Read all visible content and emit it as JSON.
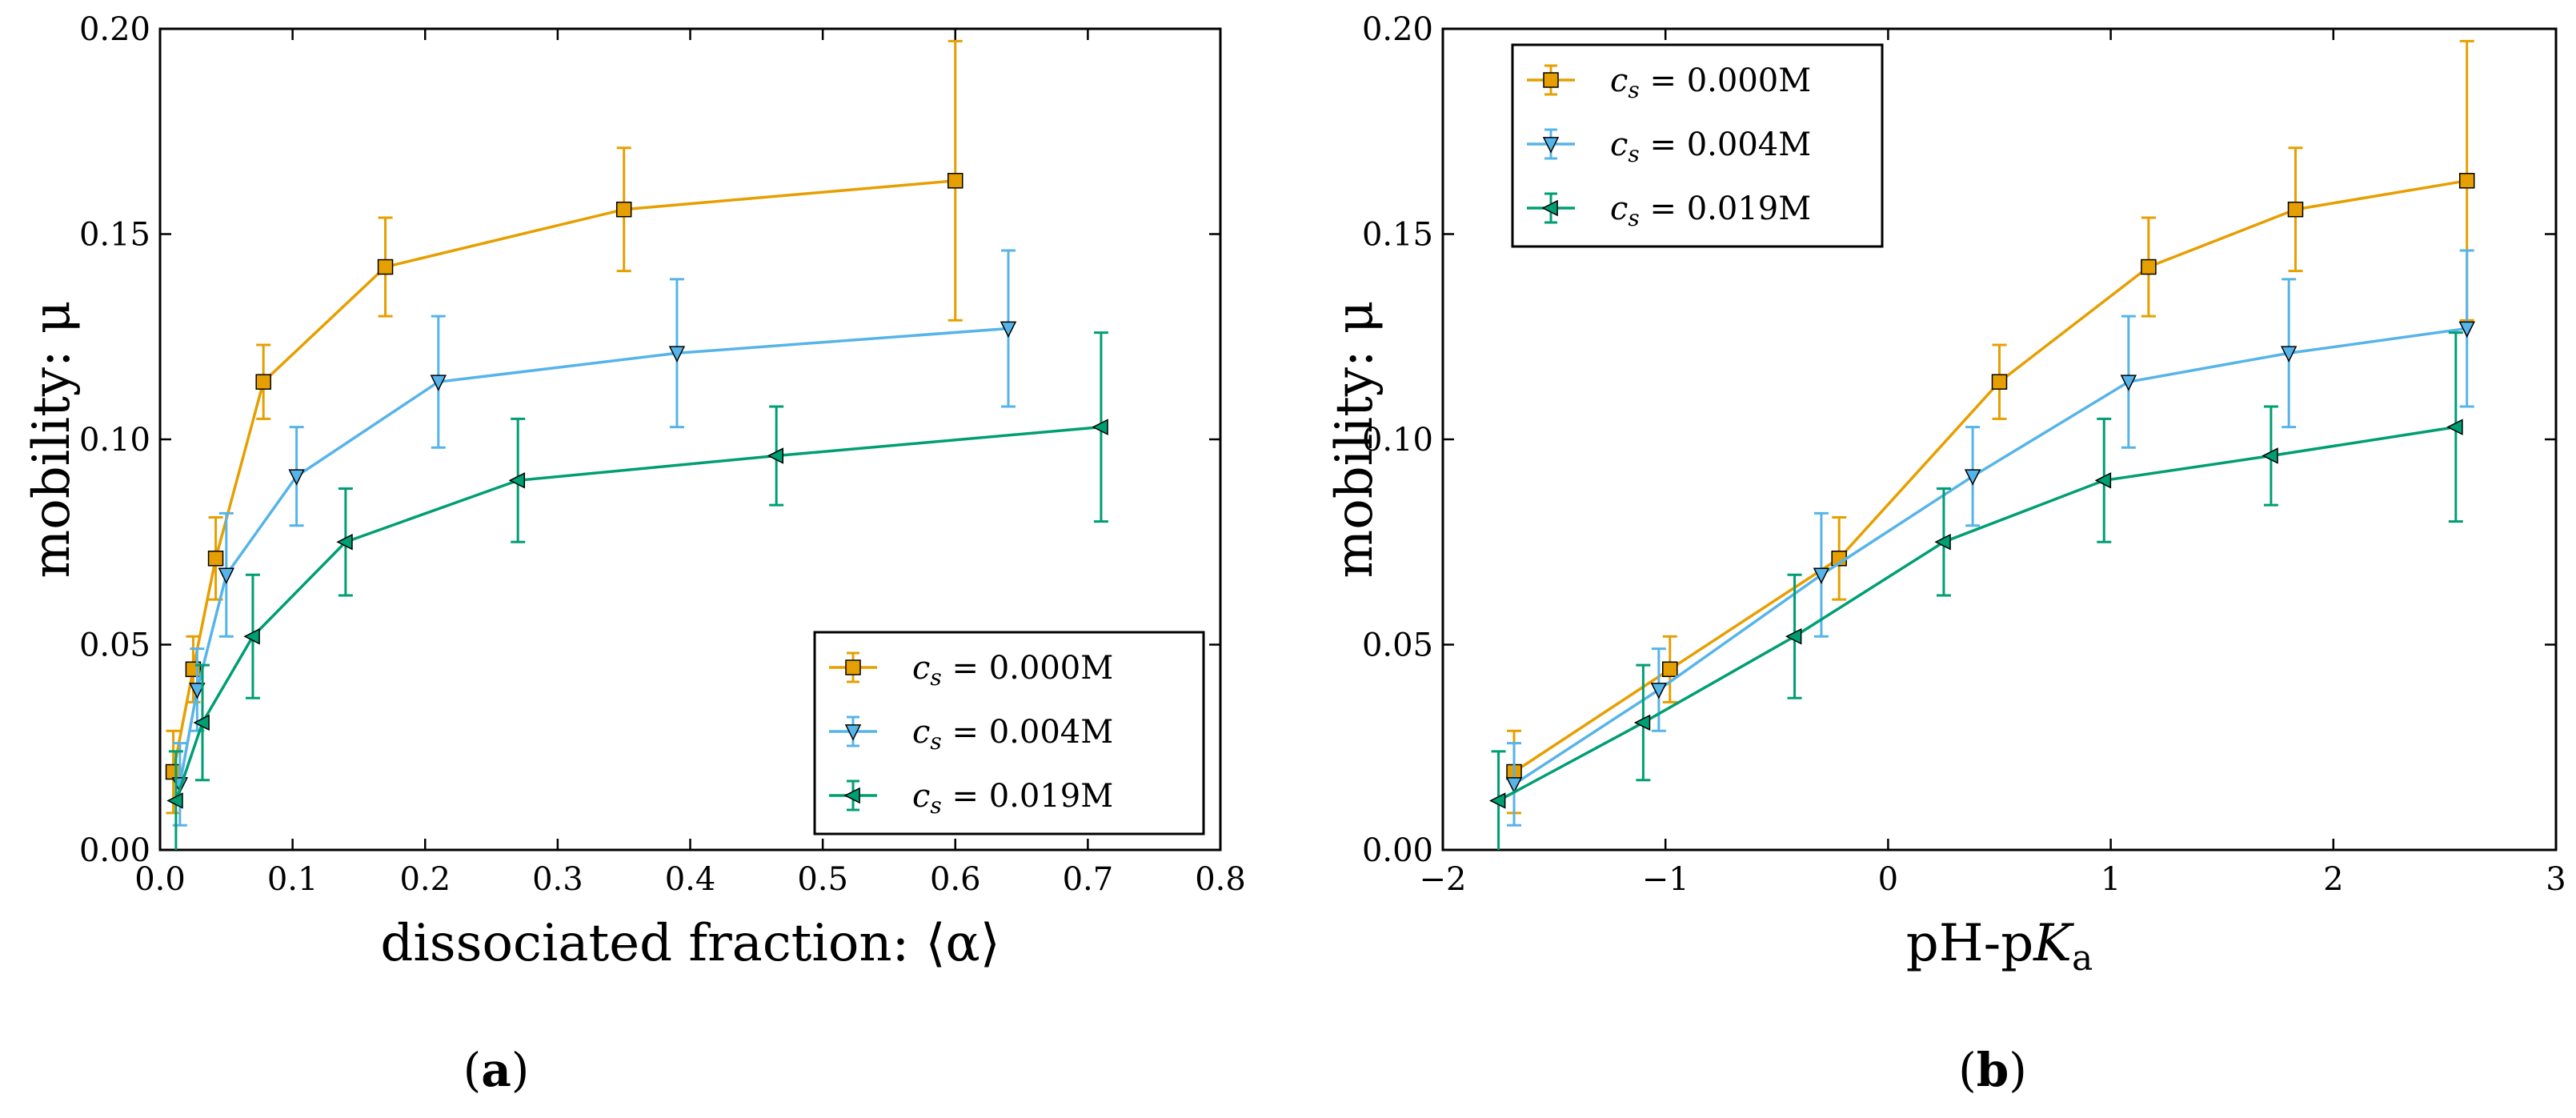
{
  "chart_data": [
    {
      "type": "line",
      "panel": "a",
      "caption": "(a)",
      "caption_letter": "a",
      "xlabel": "dissociated fraction: ⟨α⟩",
      "ylabel": "mobility: μ",
      "xlim": [
        0.0,
        0.8
      ],
      "ylim": [
        0.0,
        0.2
      ],
      "xticks": [
        0.0,
        0.1,
        0.2,
        0.3,
        0.4,
        0.5,
        0.6,
        0.7,
        0.8
      ],
      "xtick_labels": [
        "0.0",
        "0.1",
        "0.2",
        "0.3",
        "0.4",
        "0.5",
        "0.6",
        "0.7",
        "0.8"
      ],
      "yticks": [
        0.0,
        0.05,
        0.1,
        0.15,
        0.2
      ],
      "ytick_labels": [
        "0.00",
        "0.05",
        "0.10",
        "0.15",
        "0.20"
      ],
      "legend_position": "bottom-right",
      "series": [
        {
          "name": "cs = 0.000M",
          "legend_value": "0.000M",
          "color": "#E69F00",
          "marker": "square",
          "x": [
            0.01,
            0.025,
            0.042,
            0.078,
            0.17,
            0.35,
            0.6
          ],
          "y": [
            0.019,
            0.044,
            0.071,
            0.114,
            0.142,
            0.156,
            0.163
          ],
          "err": [
            0.01,
            0.008,
            0.01,
            0.009,
            0.012,
            0.015,
            0.034
          ]
        },
        {
          "name": "cs = 0.004M",
          "legend_value": "0.004M",
          "color": "#56B4E9",
          "marker": "triangle-down",
          "x": [
            0.015,
            0.028,
            0.05,
            0.103,
            0.21,
            0.39,
            0.64
          ],
          "y": [
            0.016,
            0.039,
            0.067,
            0.091,
            0.114,
            0.121,
            0.127
          ],
          "err": [
            0.01,
            0.01,
            0.015,
            0.012,
            0.016,
            0.018,
            0.019
          ]
        },
        {
          "name": "cs = 0.019M",
          "legend_value": "0.019M",
          "color": "#009E73",
          "marker": "triangle-left",
          "x": [
            0.012,
            0.032,
            0.07,
            0.14,
            0.27,
            0.465,
            0.71
          ],
          "y": [
            0.012,
            0.031,
            0.052,
            0.075,
            0.09,
            0.096,
            0.103
          ],
          "err": [
            0.012,
            0.014,
            0.015,
            0.013,
            0.015,
            0.012,
            0.023
          ]
        }
      ]
    },
    {
      "type": "line",
      "panel": "b",
      "caption": "(b)",
      "caption_letter": "b",
      "xlabel": "pH-pKa",
      "ylabel": "mobility: μ",
      "xlim": [
        -2,
        3
      ],
      "ylim": [
        0.0,
        0.2
      ],
      "xticks": [
        -2,
        -1,
        0,
        1,
        2,
        3
      ],
      "xtick_labels": [
        "−2",
        "−1",
        "0",
        "1",
        "2",
        "3"
      ],
      "yticks": [
        0.0,
        0.05,
        0.1,
        0.15,
        0.2
      ],
      "ytick_labels": [
        "0.00",
        "0.05",
        "0.10",
        "0.15",
        "0.20"
      ],
      "legend_position": "top-left",
      "series": [
        {
          "name": "cs = 0.000M",
          "legend_value": "0.000M",
          "color": "#E69F00",
          "marker": "square",
          "x": [
            -1.68,
            -0.98,
            -0.22,
            0.5,
            1.17,
            1.83,
            2.6
          ],
          "y": [
            0.019,
            0.044,
            0.071,
            0.114,
            0.142,
            0.156,
            0.163
          ],
          "err": [
            0.01,
            0.008,
            0.01,
            0.009,
            0.012,
            0.015,
            0.034
          ]
        },
        {
          "name": "cs = 0.004M",
          "legend_value": "0.004M",
          "color": "#56B4E9",
          "marker": "triangle-down",
          "x": [
            -1.68,
            -1.03,
            -0.3,
            0.38,
            1.08,
            1.8,
            2.6
          ],
          "y": [
            0.016,
            0.039,
            0.067,
            0.091,
            0.114,
            0.121,
            0.127
          ],
          "err": [
            0.01,
            0.01,
            0.015,
            0.012,
            0.016,
            0.018,
            0.019
          ]
        },
        {
          "name": "cs = 0.019M",
          "legend_value": "0.019M",
          "color": "#009E73",
          "marker": "triangle-left",
          "x": [
            -1.75,
            -1.1,
            -0.42,
            0.25,
            0.97,
            1.72,
            2.55
          ],
          "y": [
            0.012,
            0.031,
            0.052,
            0.075,
            0.09,
            0.096,
            0.103
          ],
          "err": [
            0.012,
            0.014,
            0.015,
            0.013,
            0.015,
            0.012,
            0.023
          ]
        }
      ]
    }
  ]
}
